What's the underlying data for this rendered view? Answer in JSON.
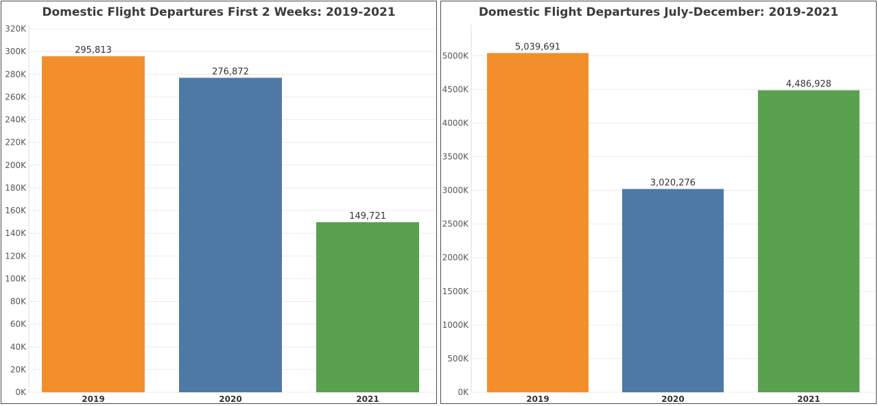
{
  "chart_data": [
    {
      "type": "bar",
      "title": "Domestic Flight Departures First 2 Weeks: 2019-2021",
      "categories": [
        "2019",
        "2020",
        "2021"
      ],
      "values": [
        295813,
        276872,
        149721
      ],
      "value_labels": [
        "295,813",
        "276,872",
        "149,721"
      ],
      "colors": [
        "#f28e2b",
        "#4e79a7",
        "#59a14f"
      ],
      "ylim": [
        0,
        320000
      ],
      "ticks": [
        0,
        20000,
        40000,
        60000,
        80000,
        100000,
        120000,
        140000,
        160000,
        180000,
        200000,
        220000,
        240000,
        260000,
        280000,
        300000,
        320000
      ],
      "tick_labels": [
        "0K",
        "20K",
        "40K",
        "60K",
        "80K",
        "100K",
        "120K",
        "140K",
        "160K",
        "180K",
        "200K",
        "220K",
        "240K",
        "260K",
        "280K",
        "300K",
        "320K"
      ],
      "grid": true,
      "xlabel": "",
      "ylabel": ""
    },
    {
      "type": "bar",
      "title": "Domestic Flight Departures July-December: 2019-2021",
      "categories": [
        "2019",
        "2020",
        "2021"
      ],
      "values": [
        5039691,
        3020276,
        4486928
      ],
      "value_labels": [
        "5,039,691",
        "3,020,276",
        "4,486,928"
      ],
      "colors": [
        "#f28e2b",
        "#4e79a7",
        "#59a14f"
      ],
      "ylim": [
        0,
        5400000
      ],
      "ticks": [
        0,
        500000,
        1000000,
        1500000,
        2000000,
        2500000,
        3000000,
        3500000,
        4000000,
        4500000,
        5000000
      ],
      "tick_labels": [
        "0K",
        "500K",
        "1000K",
        "1500K",
        "2000K",
        "2500K",
        "3000K",
        "3500K",
        "4000K",
        "4500K",
        "5000K"
      ],
      "grid": true,
      "xlabel": "",
      "ylabel": ""
    }
  ]
}
